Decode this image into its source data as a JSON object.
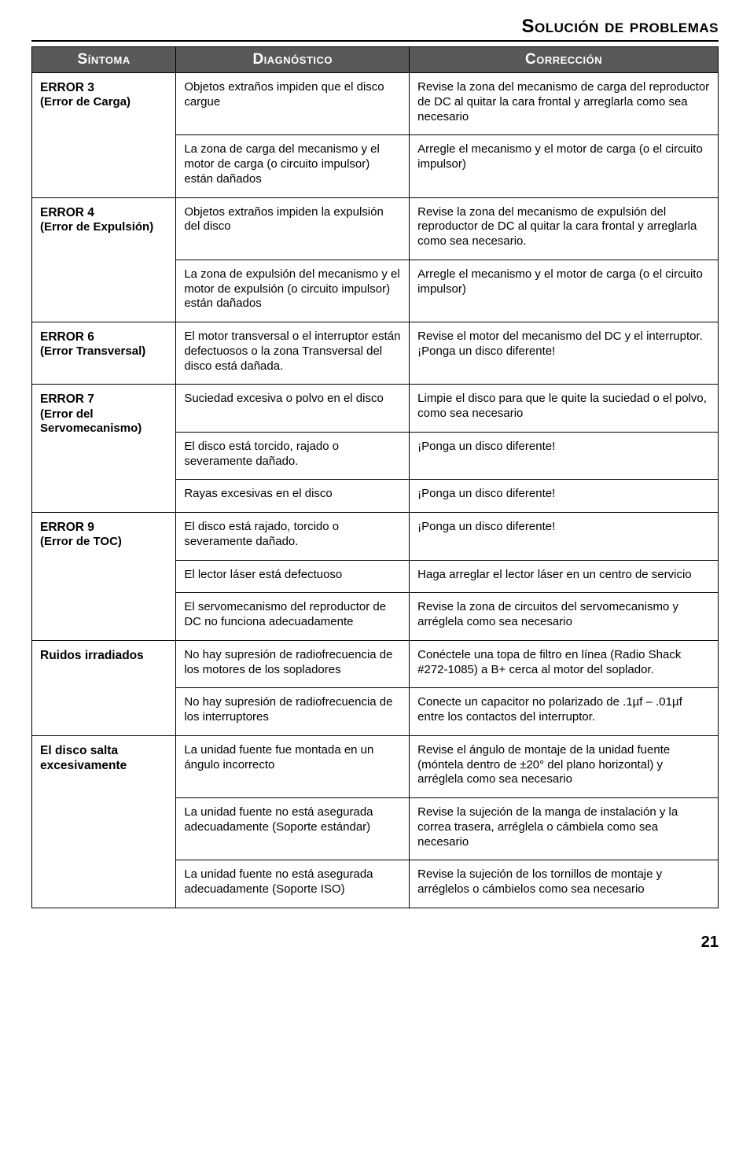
{
  "sectionTitle": "Solución de problemas",
  "headers": {
    "col1": "Síntoma",
    "col2": "Diagnóstico",
    "col3": "Corrección"
  },
  "groups": [
    {
      "symptomTitle": "ERROR 3",
      "symptomSub": "(Error de Carga)",
      "rows": [
        {
          "diag": "Objetos extraños impiden que el disco cargue",
          "corr": "Revise la zona del mecanismo de carga del reproductor de DC al quitar la cara frontal y arreglarla como sea necesario"
        },
        {
          "diag": "La zona de carga del mecanismo y el motor de carga (o circuito impulsor) están dañados",
          "corr": "Arregle el mecanismo y el motor de carga (o el circuito impulsor)"
        }
      ]
    },
    {
      "symptomTitle": "ERROR 4",
      "symptomSub": "(Error de Expulsión)",
      "rows": [
        {
          "diag": "Objetos extraños impiden la expulsión del disco",
          "corr": "Revise la zona del mecanismo de expulsión del reproductor de DC al quitar la cara frontal y arreglarla como sea necesario."
        },
        {
          "diag": "La zona de expulsión del mecanismo y el motor de expulsión (o circuito impulsor) están dañados",
          "corr": "Arregle el mecanismo y el motor de carga (o el circuito impulsor)"
        }
      ]
    },
    {
      "symptomTitle": "ERROR 6",
      "symptomSub": "(Error Transversal)",
      "rows": [
        {
          "diag": "El motor transversal o el interruptor están defectuosos o la zona Transversal del disco está dañada.",
          "corr": "Revise el motor del mecanismo del DC y el interruptor.  ¡Ponga un disco diferente!"
        }
      ]
    },
    {
      "symptomTitle": "ERROR 7",
      "symptomSub": "(Error del Servomecanismo)",
      "rows": [
        {
          "diag": "Suciedad excesiva o polvo en el disco",
          "corr": "Limpie el disco para que le quite la suciedad o el polvo, como sea necesario"
        },
        {
          "diag": "El disco está torcido, rajado o severamente dañado.",
          "corr": "¡Ponga un disco diferente!"
        },
        {
          "diag": "Rayas excesivas en el disco",
          "corr": "¡Ponga un disco diferente!"
        }
      ]
    },
    {
      "symptomTitle": "ERROR 9",
      "symptomSub": "(Error de TOC)",
      "rows": [
        {
          "diag": "El disco está rajado, torcido o severamente dañado.",
          "corr": "¡Ponga un disco diferente!"
        },
        {
          "diag": "El lector láser está defectuoso",
          "corr": "Haga arreglar el lector láser en un centro de servicio"
        },
        {
          "diag": "El servomecanismo del reproductor de DC no funciona adecuadamente",
          "corr": "Revise la zona de circuitos del servomecanismo y arréglela como sea necesario"
        }
      ]
    },
    {
      "symptomTitle": "Ruidos irradiados",
      "symptomSub": "",
      "rows": [
        {
          "diag": "No hay supresión de radiofrecuencia de los motores de los sopladores",
          "corr": "Conéctele una topa de filtro en línea (Radio Shack #272-1085) a B+ cerca al motor del soplador."
        },
        {
          "diag": "No hay supresión de radiofrecuencia de los interruptores",
          "corr": "Conecte un capacitor no polarizado de .1µf – .01µf entre los contactos del interruptor."
        }
      ]
    },
    {
      "symptomTitle": "El disco salta excesivamente",
      "symptomSub": "",
      "rows": [
        {
          "diag": "La unidad fuente fue montada en un ángulo incorrecto",
          "corr": "Revise el ángulo de montaje de la unidad fuente (móntela dentro de ±20° del plano horizontal) y arréglela como sea necesario"
        },
        {
          "diag": "La unidad fuente no está asegurada adecuadamente (Soporte estándar)",
          "corr": "Revise la sujeción de la manga de instalación y la correa trasera, arréglela o cámbiela como sea necesario"
        },
        {
          "diag": "La unidad fuente no está asegurada adecuadamente (Soporte ISO)",
          "corr": "Revise la sujeción de los tornillos de montaje y arréglelos o cámbielos como sea necesario"
        }
      ]
    }
  ],
  "pageNumber": "21"
}
